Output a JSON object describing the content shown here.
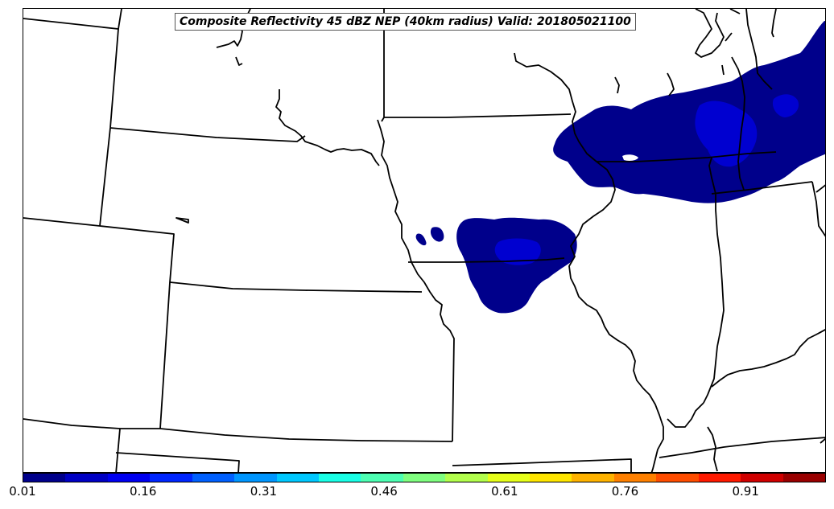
{
  "title": "Composite Reflectivity 45 dBZ NEP (40km radius) Valid: 201805021100",
  "map": {
    "line_color": "#000000",
    "low_prob_color": "#00008b",
    "mid_prob_color": "#0000d0"
  },
  "colorbar": {
    "colors": [
      "#00008b",
      "#0000c4",
      "#0000f0",
      "#0026ff",
      "#0060ff",
      "#0096ff",
      "#00c8ff",
      "#1affe6",
      "#4dffb3",
      "#80ff80",
      "#b3ff4d",
      "#e6ff1a",
      "#ffe600",
      "#ffb300",
      "#ff8000",
      "#ff4d00",
      "#ff1a00",
      "#d00000",
      "#990000"
    ],
    "tick_labels": [
      "0.01",
      "0.16",
      "0.31",
      "0.46",
      "0.61",
      "0.76",
      "0.91"
    ]
  }
}
